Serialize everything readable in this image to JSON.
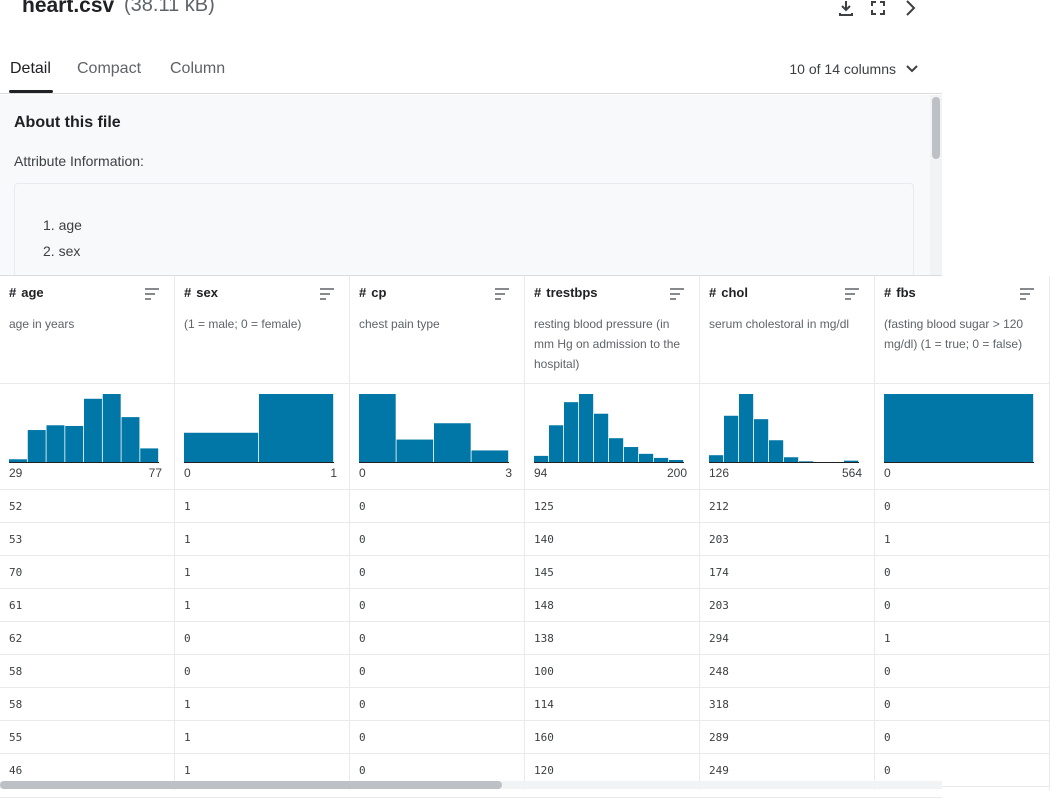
{
  "file": {
    "name": "heart.csv",
    "size": "(38.11 kB)"
  },
  "header_icons": [
    "download-icon",
    "fullscreen-icon",
    "chevron-right-icon"
  ],
  "tabs": [
    {
      "label": "Detail",
      "active": true
    },
    {
      "label": "Compact",
      "active": false
    },
    {
      "label": "Column",
      "active": false
    }
  ],
  "columns_selector": "10 of 14 columns",
  "about": {
    "title": "About this file",
    "attribute_label": "Attribute Information:",
    "items": [
      "1. age",
      "2. sex"
    ]
  },
  "colors": {
    "bar": "#0077a6",
    "axis": "#202124"
  },
  "table": {
    "columns": [
      {
        "name": "age",
        "desc": "age in years",
        "min": "29",
        "max": "77",
        "hist": [
          0.04,
          0.47,
          0.54,
          0.53,
          0.93,
          1.0,
          0.66,
          0.2
        ],
        "values": [
          "52",
          "53",
          "70",
          "61",
          "62",
          "58",
          "58",
          "55",
          "46"
        ]
      },
      {
        "name": "sex",
        "desc": "(1 = male; 0 = female)",
        "min": "0",
        "max": "1",
        "hist": [
          0.43,
          1.0
        ],
        "values": [
          "1",
          "1",
          "1",
          "1",
          "0",
          "0",
          "1",
          "1",
          "1"
        ]
      },
      {
        "name": "cp",
        "desc": "chest pain type",
        "min": "0",
        "max": "3",
        "hist": [
          1.0,
          0.33,
          0.57,
          0.17
        ],
        "values": [
          "0",
          "0",
          "0",
          "0",
          "0",
          "0",
          "0",
          "0",
          "0"
        ]
      },
      {
        "name": "trestbps",
        "desc": "resting blood pressure (in mm Hg on admission to the hospital)",
        "min": "94",
        "max": "200",
        "hist": [
          0.09,
          0.54,
          0.88,
          1.0,
          0.71,
          0.35,
          0.22,
          0.12,
          0.06,
          0.03
        ],
        "values": [
          "125",
          "140",
          "145",
          "148",
          "138",
          "100",
          "114",
          "160",
          "120"
        ]
      },
      {
        "name": "chol",
        "desc": "serum cholestoral in mg/dl",
        "min": "126",
        "max": "564",
        "hist": [
          0.1,
          0.68,
          1.0,
          0.63,
          0.32,
          0.07,
          0.01,
          0.0,
          0.0,
          0.02
        ],
        "values": [
          "212",
          "203",
          "174",
          "203",
          "294",
          "248",
          "318",
          "289",
          "249"
        ]
      },
      {
        "name": "fbs",
        "desc": "(fasting blood sugar > 120 mg/dl) (1 = true; 0 = false)",
        "min": "0",
        "max": "",
        "hist": [
          1.0
        ],
        "values": [
          "0",
          "1",
          "0",
          "0",
          "1",
          "0",
          "0",
          "0",
          "0"
        ]
      }
    ]
  }
}
